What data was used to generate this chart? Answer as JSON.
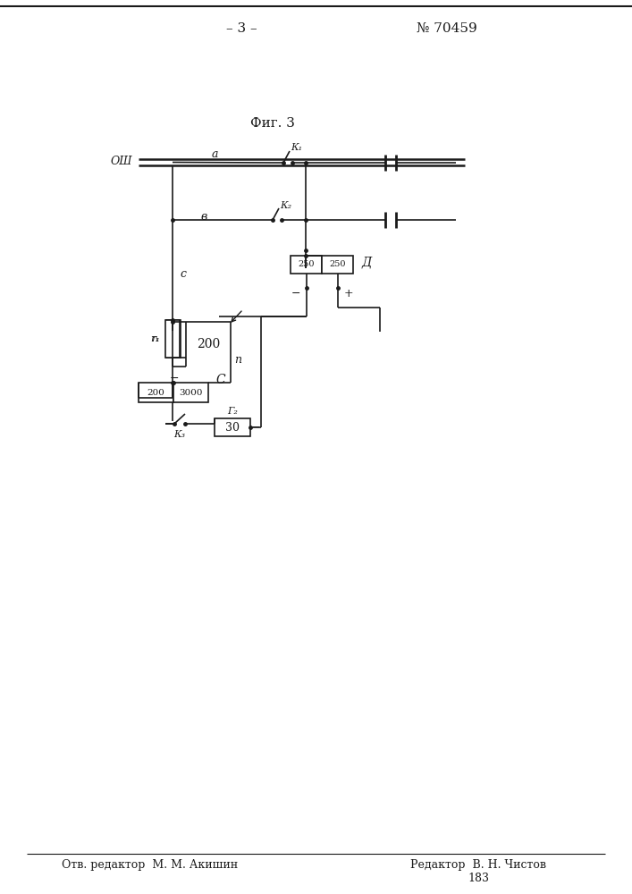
{
  "title_fig": "Фиг. 3",
  "page_num": "– 3 –",
  "patent_num": "№ 70459",
  "footer_left": "Отв. редактор  М. М. Акишин",
  "footer_right": "Редактор  В. Н. Чистов",
  "footer_num": "183",
  "bg_color": "#ffffff",
  "lc": "#1a1a1a"
}
